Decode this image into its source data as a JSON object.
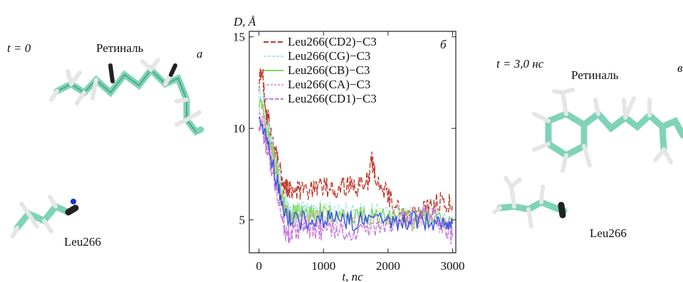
{
  "panel_left": {
    "time_label": "t = 0",
    "retinal_label": "Ретиналь",
    "leu_label": "Leu266",
    "panel_letter": "а"
  },
  "panel_right": {
    "time_label": "t = 3,0 нс",
    "retinal_label": "Ретиналь",
    "leu_label": "Leu266",
    "panel_letter": "в"
  },
  "molecule_colors": {
    "carbon": "#7fd3b8",
    "hydrogen": "#e6e6e6",
    "nitrogen": "#1a2fd6",
    "dark": "#222222"
  },
  "chart_data": {
    "type": "line",
    "title": "",
    "panel_letter": "б",
    "ylabel": "D, Å",
    "xlabel": "t, пс",
    "xlim": [
      -150,
      3050
    ],
    "ylim": [
      3.2,
      15.3
    ],
    "xticks": [
      0,
      1000,
      2000,
      3000
    ],
    "yticks": [
      5,
      10,
      15
    ],
    "legend_position": "top-left",
    "series": [
      {
        "name": "Leu266(CD2)−C3",
        "color": "#c0392b",
        "dash": "7,3",
        "points": [
          [
            0,
            12.5
          ],
          [
            50,
            13.3
          ],
          [
            100,
            11.0
          ],
          [
            150,
            10.4
          ],
          [
            200,
            9.3
          ],
          [
            250,
            8.7
          ],
          [
            300,
            8.2
          ],
          [
            350,
            7.4
          ],
          [
            400,
            6.8
          ],
          [
            450,
            6.7
          ],
          [
            500,
            6.7
          ],
          [
            600,
            6.6
          ],
          [
            700,
            6.5
          ],
          [
            800,
            6.6
          ],
          [
            900,
            6.7
          ],
          [
            1000,
            6.8
          ],
          [
            1100,
            6.7
          ],
          [
            1200,
            6.6
          ],
          [
            1300,
            6.8
          ],
          [
            1400,
            6.9
          ],
          [
            1500,
            6.8
          ],
          [
            1600,
            6.9
          ],
          [
            1700,
            7.2
          ],
          [
            1750,
            8.2
          ],
          [
            1800,
            7.4
          ],
          [
            1900,
            6.9
          ],
          [
            2000,
            6.4
          ],
          [
            2100,
            5.7
          ],
          [
            2200,
            5.4
          ],
          [
            2300,
            5.3
          ],
          [
            2400,
            5.3
          ],
          [
            2500,
            5.4
          ],
          [
            2600,
            5.6
          ],
          [
            2700,
            5.9
          ],
          [
            2800,
            6.0
          ],
          [
            2900,
            5.9
          ],
          [
            3000,
            5.9
          ]
        ]
      },
      {
        "name": "Leu266(CG)−C3",
        "color": "#a8e8ea",
        "dash": "4,2",
        "points": [
          [
            0,
            12.0
          ],
          [
            50,
            11.8
          ],
          [
            100,
            10.6
          ],
          [
            150,
            9.9
          ],
          [
            200,
            9.1
          ],
          [
            250,
            8.3
          ],
          [
            300,
            7.7
          ],
          [
            350,
            6.9
          ],
          [
            400,
            5.9
          ],
          [
            450,
            5.6
          ],
          [
            500,
            5.5
          ],
          [
            600,
            5.5
          ],
          [
            700,
            5.5
          ],
          [
            800,
            5.4
          ],
          [
            900,
            5.5
          ],
          [
            1000,
            5.5
          ],
          [
            1200,
            5.4
          ],
          [
            1400,
            5.5
          ],
          [
            1600,
            5.4
          ],
          [
            1800,
            5.5
          ],
          [
            2000,
            5.4
          ],
          [
            2200,
            5.3
          ],
          [
            2400,
            5.3
          ],
          [
            2600,
            5.2
          ],
          [
            2800,
            5.2
          ],
          [
            3000,
            5.2
          ]
        ]
      },
      {
        "name": "Leu266(CB)−C3",
        "color": "#7ed957",
        "dash": "",
        "points": [
          [
            0,
            11.4
          ],
          [
            50,
            11.2
          ],
          [
            100,
            10.1
          ],
          [
            150,
            9.4
          ],
          [
            200,
            8.8
          ],
          [
            250,
            8.0
          ],
          [
            300,
            7.3
          ],
          [
            350,
            6.5
          ],
          [
            400,
            5.6
          ],
          [
            450,
            5.4
          ],
          [
            500,
            5.3
          ],
          [
            600,
            5.4
          ],
          [
            700,
            5.3
          ],
          [
            800,
            5.3
          ],
          [
            900,
            5.4
          ],
          [
            1000,
            5.3
          ],
          [
            1200,
            5.3
          ],
          [
            1400,
            5.2
          ],
          [
            1600,
            5.3
          ],
          [
            1800,
            5.2
          ],
          [
            2000,
            5.1
          ],
          [
            2200,
            5.1
          ],
          [
            2400,
            5.0
          ],
          [
            2600,
            5.1
          ],
          [
            2800,
            5.1
          ],
          [
            3000,
            5.0
          ]
        ]
      },
      {
        "name": "Leu266(CA)−C3",
        "color": "#e8a0cf",
        "dash": "3,2",
        "points": [
          [
            0,
            10.8
          ],
          [
            50,
            10.6
          ],
          [
            100,
            9.8
          ],
          [
            150,
            9.0
          ],
          [
            200,
            8.4
          ],
          [
            250,
            7.7
          ],
          [
            300,
            7.0
          ],
          [
            350,
            6.2
          ],
          [
            400,
            5.4
          ],
          [
            450,
            5.2
          ],
          [
            500,
            5.1
          ],
          [
            600,
            5.0
          ],
          [
            700,
            5.0
          ],
          [
            800,
            4.9
          ],
          [
            900,
            5.0
          ],
          [
            1000,
            4.9
          ],
          [
            1200,
            4.9
          ],
          [
            1400,
            4.9
          ],
          [
            1600,
            4.8
          ],
          [
            1800,
            4.8
          ],
          [
            2000,
            4.8
          ],
          [
            2200,
            4.9
          ],
          [
            2400,
            4.8
          ],
          [
            2600,
            4.9
          ],
          [
            2800,
            4.8
          ],
          [
            3000,
            4.7
          ]
        ]
      },
      {
        "name": "Leu266(CD1)−C3",
        "color": "#c77bdf",
        "dash": "6,2",
        "points": [
          [
            0,
            10.2
          ],
          [
            50,
            10.0
          ],
          [
            100,
            9.3
          ],
          [
            150,
            8.5
          ],
          [
            200,
            7.8
          ],
          [
            250,
            7.0
          ],
          [
            300,
            6.1
          ],
          [
            350,
            5.1
          ],
          [
            400,
            4.4
          ],
          [
            450,
            4.2
          ],
          [
            500,
            4.3
          ],
          [
            600,
            4.4
          ],
          [
            700,
            4.5
          ],
          [
            800,
            4.4
          ],
          [
            900,
            4.5
          ],
          [
            1000,
            4.4
          ],
          [
            1200,
            4.5
          ],
          [
            1400,
            4.4
          ],
          [
            1600,
            4.5
          ],
          [
            1800,
            4.6
          ],
          [
            2000,
            4.8
          ],
          [
            2200,
            5.0
          ],
          [
            2400,
            5.2
          ],
          [
            2600,
            5.4
          ],
          [
            2700,
            5.5
          ],
          [
            2800,
            5.0
          ],
          [
            2900,
            4.4
          ],
          [
            3000,
            4.0
          ]
        ]
      },
      {
        "name": "",
        "color": "#3355dd",
        "dash": "",
        "points": [
          [
            0,
            10.6
          ],
          [
            100,
            9.6
          ],
          [
            200,
            8.2
          ],
          [
            300,
            6.8
          ],
          [
            400,
            5.3
          ],
          [
            500,
            5.1
          ],
          [
            700,
            5.0
          ],
          [
            900,
            5.1
          ],
          [
            1100,
            5.0
          ],
          [
            1300,
            5.0
          ],
          [
            1500,
            4.9
          ],
          [
            1700,
            5.0
          ],
          [
            1900,
            5.0
          ],
          [
            2100,
            4.9
          ],
          [
            2300,
            4.9
          ],
          [
            2500,
            5.0
          ],
          [
            2700,
            4.9
          ],
          [
            2900,
            4.8
          ],
          [
            3000,
            4.8
          ]
        ]
      }
    ]
  }
}
